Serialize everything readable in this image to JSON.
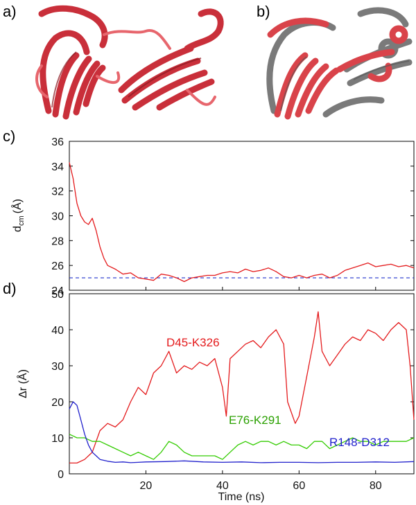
{
  "panels": {
    "a": "a)",
    "b": "b)",
    "c": "c)",
    "d": "d)"
  },
  "colors": {
    "red": "#e41a1c",
    "green": "#33cc00",
    "blue": "#1f1fcc",
    "ribbon_red": "#d9434a",
    "ribbon_gray": "#6e6e6e"
  },
  "chart_data": [
    {
      "id": "c",
      "type": "line",
      "xlabel": "",
      "ylabel": "d",
      "ylabel_sub": "cm",
      "ylabel_unit": "(Å)",
      "xlim": [
        0,
        90
      ],
      "ylim": [
        24,
        36
      ],
      "yticks": [
        "24",
        "26",
        "28",
        "30",
        "32",
        "34",
        "36"
      ],
      "ytick_values": [
        24,
        26,
        28,
        30,
        32,
        34,
        36
      ],
      "series": [
        {
          "color": "#e41a1c",
          "x": [
            0,
            1,
            2,
            3,
            4,
            5,
            6,
            7,
            8,
            9,
            10,
            12,
            14,
            16,
            18,
            20,
            22,
            24,
            26,
            28,
            30,
            32,
            34,
            36,
            38,
            40,
            42,
            44,
            46,
            48,
            50,
            52,
            54,
            56,
            58,
            60,
            62,
            64,
            66,
            68,
            70,
            72,
            74,
            76,
            78,
            80,
            82,
            84,
            86,
            88,
            90
          ],
          "values": [
            34.3,
            33.0,
            31.0,
            30.0,
            29.5,
            29.3,
            29.8,
            28.8,
            27.5,
            26.6,
            26.0,
            25.7,
            25.3,
            25.4,
            25.0,
            24.9,
            24.8,
            25.3,
            25.2,
            25.0,
            24.7,
            25.0,
            25.1,
            25.2,
            25.2,
            25.4,
            25.5,
            25.4,
            25.7,
            25.5,
            25.6,
            25.8,
            25.5,
            25.1,
            25.0,
            25.2,
            25.0,
            25.2,
            25.3,
            25.0,
            25.2,
            25.6,
            25.8,
            26.0,
            26.2,
            25.9,
            26.0,
            26.1,
            25.9,
            26.0,
            25.8
          ]
        }
      ],
      "reference_line": {
        "y": 25.0,
        "color": "#2233cc",
        "style": "dashed"
      }
    },
    {
      "id": "d",
      "type": "line",
      "xlabel": "Time (ns)",
      "ylabel": "Δr (Å)",
      "xlim": [
        0,
        90
      ],
      "ylim": [
        0,
        50
      ],
      "xticks": [
        "20",
        "40",
        "60",
        "80"
      ],
      "xtick_values": [
        20,
        40,
        60,
        80
      ],
      "yticks": [
        "0",
        "10",
        "20",
        "30",
        "40",
        "50"
      ],
      "ytick_values": [
        0,
        10,
        20,
        30,
        40,
        50
      ],
      "series": [
        {
          "name": "D45-K326",
          "color": "#e41a1c",
          "x": [
            0,
            2,
            4,
            6,
            8,
            10,
            12,
            14,
            16,
            18,
            20,
            22,
            24,
            26,
            28,
            30,
            32,
            34,
            36,
            38,
            40,
            41,
            42,
            44,
            46,
            48,
            50,
            52,
            54,
            56,
            57,
            58,
            59,
            60,
            62,
            64,
            65,
            66,
            68,
            70,
            72,
            74,
            76,
            78,
            80,
            82,
            84,
            86,
            88,
            89,
            90
          ],
          "values": [
            3,
            3,
            4,
            6,
            12,
            14,
            13,
            15,
            20,
            24,
            22,
            28,
            30,
            34,
            28,
            30,
            29,
            31,
            30,
            32,
            24,
            16,
            32,
            34,
            36,
            37,
            35,
            38,
            40,
            36,
            20,
            17,
            14,
            16,
            27,
            38,
            45,
            34,
            30,
            33,
            36,
            38,
            37,
            40,
            39,
            37,
            40,
            42,
            40,
            30,
            15
          ]
        },
        {
          "name": "E76-K291",
          "color": "#33cc00",
          "x": [
            0,
            2,
            4,
            6,
            8,
            10,
            12,
            14,
            16,
            18,
            20,
            22,
            24,
            26,
            28,
            30,
            32,
            34,
            36,
            38,
            40,
            42,
            44,
            46,
            48,
            50,
            52,
            54,
            56,
            58,
            60,
            62,
            64,
            66,
            68,
            70,
            72,
            74,
            76,
            78,
            80,
            82,
            84,
            86,
            88,
            90
          ],
          "values": [
            11,
            10,
            10,
            9,
            9,
            8,
            7,
            6,
            5,
            6,
            5,
            4,
            6,
            9,
            8,
            6,
            5,
            5,
            5,
            5,
            4,
            6,
            8,
            9,
            8,
            9,
            9,
            8,
            9,
            8,
            8,
            7,
            9,
            9,
            7,
            8,
            9,
            10,
            9,
            9,
            8,
            9,
            9,
            9,
            9,
            10
          ]
        },
        {
          "name": "R148-D312",
          "color": "#1f1fcc",
          "x": [
            0,
            1,
            2,
            3,
            4,
            5,
            6,
            7,
            8,
            10,
            12,
            14,
            16,
            18,
            20,
            25,
            30,
            35,
            40,
            45,
            50,
            55,
            60,
            65,
            70,
            75,
            80,
            85,
            90
          ],
          "values": [
            18,
            20,
            19,
            15,
            11,
            8,
            6,
            5,
            4,
            3.5,
            3.2,
            3.3,
            3.1,
            3.2,
            3.3,
            3.4,
            3.6,
            3.3,
            3.2,
            3.3,
            3.1,
            3.2,
            3.2,
            3.1,
            3.2,
            3.2,
            3.3,
            3.2,
            3.4
          ]
        }
      ]
    }
  ]
}
